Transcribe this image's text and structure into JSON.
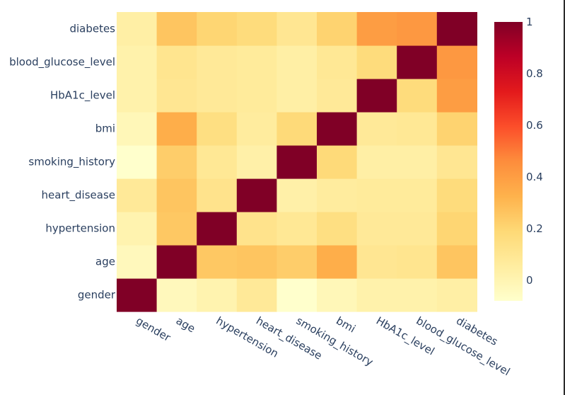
{
  "chart_data": {
    "type": "heatmap",
    "x": [
      "gender",
      "age",
      "hypertension",
      "heart_disease",
      "smoking_history",
      "bmi",
      "HbA1c_level",
      "blood_glucose_level",
      "diabetes"
    ],
    "y": [
      "gender",
      "age",
      "hypertension",
      "heart_disease",
      "smoking_history",
      "bmi",
      "HbA1c_level",
      "blood_glucose_level",
      "diabetes"
    ],
    "z": [
      [
        1.0,
        -0.03,
        0.01,
        0.08,
        -0.08,
        -0.02,
        0.02,
        0.02,
        0.04
      ],
      [
        -0.03,
        1.0,
        0.25,
        0.26,
        0.23,
        0.34,
        0.1,
        0.11,
        0.26
      ],
      [
        0.01,
        0.25,
        1.0,
        0.12,
        0.09,
        0.15,
        0.08,
        0.08,
        0.2
      ],
      [
        0.08,
        0.26,
        0.12,
        1.0,
        0.03,
        0.06,
        0.07,
        0.07,
        0.17
      ],
      [
        -0.08,
        0.23,
        0.09,
        0.03,
        1.0,
        0.18,
        0.04,
        0.04,
        0.1
      ],
      [
        -0.02,
        0.34,
        0.15,
        0.06,
        0.18,
        1.0,
        0.08,
        0.09,
        0.21
      ],
      [
        0.02,
        0.1,
        0.08,
        0.07,
        0.04,
        0.08,
        1.0,
        0.17,
        0.4
      ],
      [
        0.02,
        0.11,
        0.08,
        0.07,
        0.04,
        0.09,
        0.17,
        1.0,
        0.42
      ],
      [
        0.04,
        0.26,
        0.2,
        0.17,
        0.1,
        0.21,
        0.4,
        0.42,
        1.0
      ]
    ],
    "zrange": [
      -0.08,
      1.0
    ],
    "colorscale": [
      [
        0.0,
        "#ffffcc"
      ],
      [
        0.125,
        "#ffeda0"
      ],
      [
        0.25,
        "#fed976"
      ],
      [
        0.375,
        "#feb24c"
      ],
      [
        0.5,
        "#fd8d3c"
      ],
      [
        0.625,
        "#fc4e2a"
      ],
      [
        0.75,
        "#e31a1c"
      ],
      [
        0.875,
        "#bd0026"
      ],
      [
        1.0,
        "#800026"
      ]
    ],
    "colorbar": {
      "ticks": [
        0,
        0.2,
        0.4,
        0.6,
        0.8,
        1
      ],
      "tick_labels": [
        "0",
        "0.2",
        "0.4",
        "0.6",
        "0.8",
        "1"
      ]
    },
    "legend": "colorbar-right"
  }
}
